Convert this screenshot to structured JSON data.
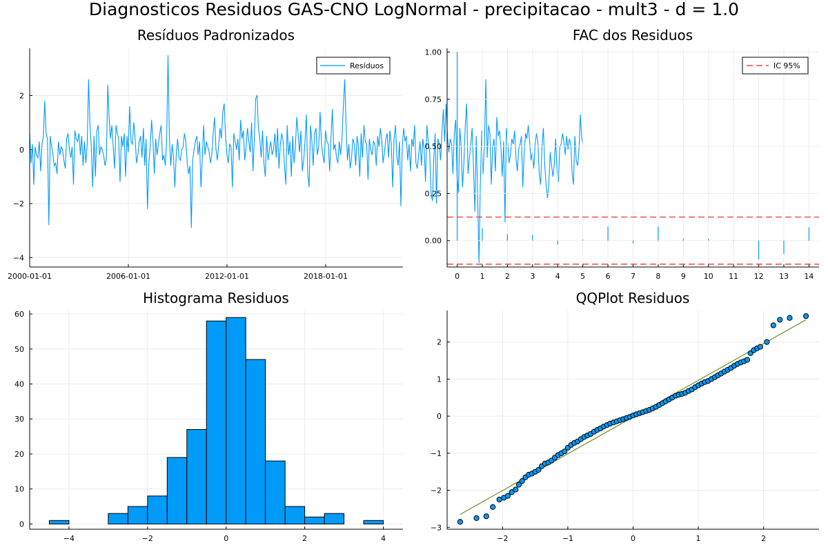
{
  "suptitle": "Diagnosticos Residuos  GAS-CNO LogNormal - precipitacao - mult3 - d = 1.0",
  "colors": {
    "series": "#009af9",
    "ci": "#e26f46",
    "ci_line": "#e0281c",
    "qq_line": "#6b8e23",
    "grid": "#ececec"
  },
  "chart_data": [
    {
      "id": "residuals",
      "type": "line",
      "title": "Resíduos Padronizados",
      "xlim": [
        2000.0,
        2022.7
      ],
      "ylim": [
        -4.35,
        3.75
      ],
      "x_start": 2000.0,
      "x_step": 0.0833,
      "yticks": [
        -4,
        -2,
        0,
        2
      ],
      "ytick_labels": [
        "−4",
        "−2",
        "0",
        "2"
      ],
      "xticks": [
        2000.0,
        2006.0,
        2012.0,
        2018.0
      ],
      "xtick_labels": [
        "2000-01-01",
        "2006-01-01",
        "2012-01-01",
        "2018-01-01"
      ],
      "grid": true,
      "legend": "top-right",
      "series": [
        {
          "name": "Resíduos",
          "values": [
            0.6,
            -0.5,
            0.2,
            -1.3,
            0.1,
            -0.2,
            -0.3,
            0.3,
            -0.8,
            0.2,
            0.5,
            1.8,
            0.6,
            0.4,
            -2.8,
            0.5,
            0.1,
            -0.2,
            -0.6,
            -0.5,
            -0.9,
            0.3,
            -0.2,
            0.1,
            0.0,
            -0.4,
            -0.7,
            0.4,
            0.6,
            0.0,
            -0.3,
            0.1,
            -1.3,
            0.7,
            0.4,
            0.3,
            0.6,
            -0.2,
            0.5,
            -0.6,
            0.3,
            -0.5,
            0.2,
            2.6,
            0.9,
            0.1,
            -1.4,
            0.5,
            -1.0,
            0.7,
            0.9,
            -0.2,
            0.1,
            0.0,
            -0.2,
            -0.6,
            -0.3,
            2.4,
            1.2,
            0.4,
            0.9,
            0.1,
            -0.7,
            0.9,
            0.6,
            0.4,
            -1.2,
            0.5,
            0.1,
            0.6,
            -1.0,
            0.5,
            -0.1,
            1.6,
            0.3,
            0.2,
            1.0,
            0.4,
            -0.5,
            -0.2,
            0.3,
            0.5,
            -0.3,
            0.8,
            -0.6,
            0.4,
            -2.2,
            -0.5,
            0.1,
            1.1,
            0.3,
            -0.9,
            0.4,
            -0.2,
            0.2,
            0.6,
            0.9,
            -0.4,
            -0.2,
            -0.6,
            0.3,
            3.5,
            0.4,
            -0.6,
            0.2,
            -0.3,
            -1.4,
            -0.2,
            0.4,
            -0.3,
            -0.4,
            0.0,
            0.1,
            0.6,
            0.3,
            -0.5,
            -0.9,
            -0.6,
            -2.9,
            -0.4,
            0.0,
            0.3,
            0.5,
            -0.2,
            0.3,
            -1.4,
            -0.4,
            0.9,
            -0.2,
            0.3,
            0.1,
            -0.1,
            -0.5,
            -0.2,
            0.6,
            1.2,
            0.0,
            -0.4,
            0.2,
            0.8,
            0.4,
            1.4,
            1.7,
            0.5,
            -0.2,
            -0.5,
            0.2,
            0.1,
            -1.4,
            0.6,
            0.3,
            0.0,
            0.4,
            -0.4,
            1.1,
            0.4,
            0.7,
            -0.4,
            0.1,
            0.8,
            0.3,
            -0.1,
            1.0,
            -0.8,
            0.4,
            1.9,
            2.0,
            0.8,
            0.4,
            -0.3,
            0.7,
            -0.5,
            -1.0,
            0.5,
            -0.4,
            0.0,
            0.3,
            -0.2,
            0.0,
            0.6,
            -0.3,
            0.8,
            -0.7,
            0.2,
            0.6,
            0.3,
            -0.6,
            -1.3,
            0.9,
            -0.2,
            0.3,
            -1.0,
            0.5,
            -0.5,
            0.1,
            1.2,
            0.6,
            -0.1,
            0.7,
            -0.8,
            -0.4,
            0.3,
            1.3,
            -0.9,
            -1.4,
            0.9,
            0.3,
            -0.6,
            0.6,
            0.8,
            -0.2,
            0.1,
            1.4,
            0.2,
            -0.2,
            -0.5,
            0.7,
            0.3,
            0.2,
            -0.8,
            0.5,
            1.5,
            0.0,
            0.2,
            -0.3,
            -0.5,
            0.3,
            -0.2,
            0.4,
            1.6,
            2.6,
            0.9,
            -0.4,
            0.2,
            -0.7,
            -0.3,
            0.4,
            0.2,
            -0.6,
            0.5,
            0.1,
            -1.0,
            0.6,
            -0.3,
            0.9,
            0.3,
            0.2,
            -1.1,
            0.4,
            0.0,
            -0.2,
            0.3,
            0.2,
            -0.6,
            0.5,
            0.1,
            0.8,
            0.4,
            -0.5,
            -0.1,
            0.4,
            0.6,
            -0.3,
            0.7,
            0.2,
            -1.4,
            0.4,
            0.9,
            -0.2,
            -0.6,
            0.3,
            -2.1,
            0.1,
            0.8,
            0.3,
            0.5,
            -0.4,
            0.2,
            -0.8,
            0.4,
            0.1,
            0.9,
            -0.5,
            -0.7,
            -0.2,
            0.3,
            -0.6,
            0.4,
            0.0,
            -1.2,
            0.9,
            0.3,
            -0.1,
            -1.6,
            -1.9,
            -0.3,
            0.6,
            -2.0,
            0.4,
            0.2,
            -0.4,
            0.7,
            1.5,
            0.3,
            1.7,
            0.5,
            -0.1,
            0.4,
            0.2,
            -0.9,
            0.6,
            1.1,
            -1.0,
            -1.6,
            0.8,
            0.1,
            -1.4,
            -0.5,
            0.9,
            1.7,
            -0.9,
            -0.3,
            0.2,
            0.8,
            -0.6,
            -2.3,
            0.5,
            -1.7,
            -4.2,
            -1.3,
            0.7,
            -0.9,
            0.2,
            2.6,
            -0.3,
            0.9,
            0.6,
            -1.3,
            0.1,
            0.4,
            -0.8,
            1.2,
            0.5,
            0.7,
            0.1,
            -1.0,
            0.3,
            -2.7,
            0.8,
            0.2,
            -0.5,
            -0.2,
            0.4,
            0.2,
            0.7,
            -0.3,
            -0.8,
            0.0,
            0.2,
            0.5,
            -1.4,
            -0.1,
            0.6,
            0.4,
            0.9,
            0.3,
            -0.4,
            -0.1,
            -0.7,
            0.2,
            0.6,
            0.3,
            -0.9,
            -1.3,
            0.1,
            0.8,
            -0.6,
            -1.3,
            -1.8,
            -1.3,
            -0.1,
            -0.6,
            -1.0,
            -0.5,
            0.4,
            -0.8,
            -1.2,
            0.1,
            0.2,
            0.6,
            0.3,
            -0.2,
            0.5,
            0.0,
            0.4,
            0.2,
            -0.9,
            -1.3,
            0.5,
            -0.4,
            -0.6,
            0.0,
            1.3,
            0.4,
            0.2
          ]
        }
      ]
    },
    {
      "id": "acf",
      "type": "bar",
      "title": "FAC dos Residuos",
      "xlim": [
        -0.4,
        14.4
      ],
      "ylim": [
        -0.14,
        1.02
      ],
      "x": [
        0,
        1,
        2,
        3,
        4,
        5,
        6,
        7,
        8,
        9,
        10,
        11,
        12,
        13,
        14
      ],
      "xtick_labels": [
        "0",
        "1",
        "2",
        "3",
        "4",
        "5",
        "6",
        "7",
        "8",
        "9",
        "10",
        "11",
        "12",
        "13",
        "14"
      ],
      "values": [
        1.0,
        0.065,
        0.035,
        0.03,
        -0.02,
        0.005,
        0.075,
        -0.015,
        0.075,
        0.008,
        0.01,
        -0.002,
        -0.1,
        -0.07,
        0.07
      ],
      "yticks": [
        0.0,
        0.25,
        0.5,
        0.75,
        1.0
      ],
      "ytick_labels": [
        "0.00",
        "0.25",
        "0.50",
        "0.75",
        "1.00"
      ],
      "ci": 0.125,
      "ci_label": "IC 95%",
      "grid": true,
      "legend": "top-right"
    },
    {
      "id": "histogram",
      "type": "bar",
      "title": "Histograma Residuos",
      "xlim": [
        -5.0,
        4.5
      ],
      "ylim": [
        -1.5,
        61.0
      ],
      "bin_edges": [
        -4.5,
        -4.0,
        -3.5,
        -3.0,
        -2.5,
        -2.0,
        -1.5,
        -1.0,
        -0.5,
        0.0,
        0.5,
        1.0,
        1.5,
        2.0,
        2.5,
        3.0,
        3.5,
        4.0
      ],
      "counts": [
        1,
        0,
        0,
        3,
        5,
        8,
        19,
        27,
        58,
        59,
        47,
        18,
        5,
        2,
        3,
        0,
        1
      ],
      "xticks": [
        -4,
        -2,
        0,
        2,
        4
      ],
      "xtick_labels": [
        "−4",
        "−2",
        "0",
        "2",
        "4"
      ],
      "yticks": [
        0,
        10,
        20,
        30,
        40,
        50,
        60
      ],
      "ytick_labels": [
        "0",
        "10",
        "20",
        "30",
        "40",
        "50",
        "60"
      ],
      "grid": true
    },
    {
      "id": "qqplot",
      "type": "scatter",
      "title": "QQPlot Residuos",
      "xlim": [
        -2.85,
        2.85
      ],
      "ylim": [
        -3.05,
        2.85
      ],
      "xticks": [
        -2,
        -1,
        0,
        1,
        2
      ],
      "xtick_labels": [
        "−2",
        "−1",
        "0",
        "1",
        "2"
      ],
      "yticks": [
        -3,
        -2,
        -1,
        0,
        1,
        2
      ],
      "ytick_labels": [
        "−3",
        "−2",
        "−1",
        "0",
        "1",
        "2"
      ],
      "reference_line": {
        "x": [
          -2.65,
          2.65
        ],
        "y": [
          -2.65,
          2.6
        ]
      },
      "points": {
        "x": [
          -2.65,
          -2.4,
          -2.25,
          -2.15,
          -2.05,
          -1.98,
          -1.92,
          -1.86,
          -1.8,
          -1.75,
          -1.7,
          -1.65,
          -1.6,
          -1.55,
          -1.5,
          -1.45,
          -1.4,
          -1.35,
          -1.3,
          -1.25,
          -1.2,
          -1.15,
          -1.1,
          -1.05,
          -1.0,
          -0.95,
          -0.9,
          -0.85,
          -0.8,
          -0.75,
          -0.7,
          -0.65,
          -0.6,
          -0.55,
          -0.5,
          -0.45,
          -0.4,
          -0.35,
          -0.3,
          -0.25,
          -0.2,
          -0.15,
          -0.1,
          -0.05,
          0.0,
          0.05,
          0.1,
          0.15,
          0.2,
          0.25,
          0.3,
          0.35,
          0.4,
          0.45,
          0.5,
          0.55,
          0.6,
          0.65,
          0.7,
          0.75,
          0.8,
          0.85,
          0.9,
          0.95,
          1.0,
          1.05,
          1.1,
          1.15,
          1.2,
          1.25,
          1.3,
          1.35,
          1.4,
          1.45,
          1.5,
          1.55,
          1.6,
          1.65,
          1.7,
          1.75,
          1.8,
          1.85,
          1.9,
          1.95,
          2.05,
          2.15,
          2.25,
          2.4,
          2.65
        ],
        "y": [
          -2.85,
          -2.75,
          -2.7,
          -2.45,
          -2.25,
          -2.2,
          -2.15,
          -2.05,
          -1.98,
          -1.85,
          -1.75,
          -1.65,
          -1.58,
          -1.55,
          -1.5,
          -1.45,
          -1.35,
          -1.28,
          -1.25,
          -1.2,
          -1.12,
          -1.05,
          -1.0,
          -0.95,
          -0.85,
          -0.78,
          -0.72,
          -0.68,
          -0.62,
          -0.56,
          -0.52,
          -0.48,
          -0.42,
          -0.37,
          -0.33,
          -0.28,
          -0.24,
          -0.2,
          -0.17,
          -0.14,
          -0.11,
          -0.08,
          -0.05,
          -0.02,
          0.02,
          0.05,
          0.08,
          0.11,
          0.14,
          0.17,
          0.21,
          0.25,
          0.3,
          0.35,
          0.4,
          0.45,
          0.5,
          0.55,
          0.58,
          0.6,
          0.63,
          0.68,
          0.72,
          0.78,
          0.83,
          0.88,
          0.92,
          0.95,
          1.0,
          1.05,
          1.1,
          1.15,
          1.2,
          1.25,
          1.3,
          1.36,
          1.41,
          1.45,
          1.48,
          1.52,
          1.7,
          1.78,
          1.83,
          1.87,
          2.0,
          2.45,
          2.6,
          2.65,
          2.7
        ]
      },
      "grid": true
    }
  ]
}
